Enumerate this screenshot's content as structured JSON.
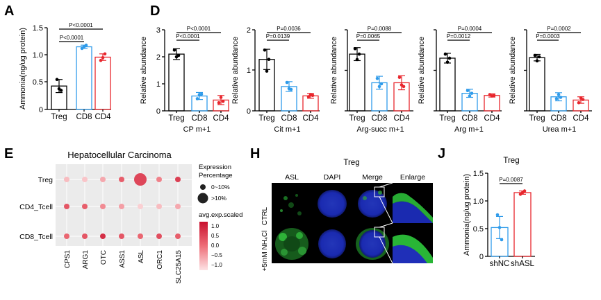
{
  "panel_labels": {
    "A": "A",
    "D": "D",
    "E": "E",
    "H": "H",
    "J": "J"
  },
  "chart_data": [
    {
      "id": "A",
      "type": "bar",
      "ylabel": "Ammonia(ng/ug protein)",
      "ylim": [
        0,
        1.5
      ],
      "yticks": [
        "0",
        "0.5",
        "1.0",
        "1.5"
      ],
      "categories": [
        "Treg",
        "CD8",
        "CD4"
      ],
      "values": [
        0.43,
        1.15,
        0.96
      ],
      "errors": [
        0.12,
        0.03,
        0.06
      ],
      "points": [
        [
          0.55,
          0.38,
          0.35
        ],
        [
          1.12,
          1.15,
          1.18
        ],
        [
          0.9,
          0.95,
          1.02
        ]
      ],
      "colors": [
        "#000000",
        "#2f9bea",
        "#e8262d"
      ],
      "annotations": [
        "P<0.0001",
        "P<0.0001"
      ]
    },
    {
      "id": "D1",
      "type": "bar",
      "ylabel": "Relative abundance",
      "xlabel": "CP m+1",
      "ylim": [
        0,
        3
      ],
      "yticks": [
        "0",
        "1",
        "2",
        "3"
      ],
      "categories": [
        "Treg",
        "CD8",
        "CD4"
      ],
      "values": [
        2.1,
        0.55,
        0.4
      ],
      "errors": [
        0.2,
        0.13,
        0.17
      ],
      "points": [
        [
          2.25,
          2.0,
          2.05
        ],
        [
          0.45,
          0.6,
          0.62
        ],
        [
          0.3,
          0.5,
          0.35
        ]
      ],
      "colors": [
        "#000000",
        "#2f9bea",
        "#e8262d"
      ],
      "annotations": [
        "P<0.0001",
        "P<0.0001"
      ]
    },
    {
      "id": "D2",
      "type": "bar",
      "ylabel": "Relative abundance",
      "xlabel": "Cit m+1",
      "ylim": [
        0,
        2
      ],
      "yticks": [
        "0",
        "1",
        "2"
      ],
      "categories": [
        "Treg",
        "CD8",
        "CD4"
      ],
      "values": [
        1.27,
        0.6,
        0.37
      ],
      "errors": [
        0.25,
        0.12,
        0.06
      ],
      "points": [
        [
          1.5,
          0.98,
          1.27
        ],
        [
          0.7,
          0.55,
          0.53
        ],
        [
          0.35,
          0.4,
          0.38
        ]
      ],
      "colors": [
        "#000000",
        "#2f9bea",
        "#e8262d"
      ],
      "annotations": [
        "P=0.0139",
        "P=0.0036"
      ]
    },
    {
      "id": "D3",
      "type": "bar",
      "ylabel": "Relative abundance",
      "xlabel": "Arg-succ m+1",
      "ylim": [
        0,
        1.5
      ],
      "yticks": [],
      "categories": [
        "Treg",
        "CD8",
        "CD4"
      ],
      "values": [
        1.05,
        0.52,
        0.52
      ],
      "errors": [
        0.12,
        0.12,
        0.13
      ],
      "points": [
        [
          1.15,
          0.95,
          1.05
        ],
        [
          0.6,
          0.45,
          0.5
        ],
        [
          0.62,
          0.48,
          0.45
        ]
      ],
      "colors": [
        "#000000",
        "#2f9bea",
        "#e8262d"
      ],
      "annotations": [
        "P=0.0065",
        "P=0.0088"
      ]
    },
    {
      "id": "D4",
      "type": "bar",
      "ylabel": "Relative abundance",
      "xlabel": "Arg m+1",
      "ylim": [
        0,
        3
      ],
      "yticks": [],
      "categories": [
        "Treg",
        "CD8",
        "CD4"
      ],
      "values": [
        1.95,
        0.65,
        0.57
      ],
      "errors": [
        0.18,
        0.15,
        0.06
      ],
      "points": [
        [
          2.1,
          1.8,
          1.95
        ],
        [
          0.75,
          0.55,
          0.65
        ],
        [
          0.6,
          0.55,
          0.57
        ]
      ],
      "colors": [
        "#000000",
        "#2f9bea",
        "#e8262d"
      ],
      "annotations": [
        "P=0.0012",
        "P=0.0004"
      ]
    },
    {
      "id": "D5",
      "type": "bar",
      "ylabel": "Relative abundance",
      "xlabel": "Urea m+1",
      "ylim": [
        0,
        3
      ],
      "yticks": [],
      "categories": [
        "Treg",
        "CD8",
        "CD4"
      ],
      "values": [
        1.97,
        0.52,
        0.4
      ],
      "errors": [
        0.12,
        0.15,
        0.12
      ],
      "points": [
        [
          2.05,
          1.85,
          2.0
        ],
        [
          0.45,
          0.6,
          0.5
        ],
        [
          0.3,
          0.48,
          0.42
        ]
      ],
      "colors": [
        "#000000",
        "#2f9bea",
        "#e8262d"
      ],
      "annotations": [
        "P=0.0003",
        "P=0.0002"
      ]
    },
    {
      "id": "E",
      "type": "heatmap",
      "title": "Hepatocellular Carcinoma",
      "rows": [
        "Treg",
        "CD4_Tcell",
        "CD8_Tcell"
      ],
      "cols": [
        "CPS1",
        "ARG1",
        "OTC",
        "ASS1",
        "ASL",
        "ORC1",
        "SLC25A15"
      ],
      "values": [
        [
          -0.8,
          -0.9,
          -0.6,
          0.2,
          0.5,
          -0.2,
          0.6
        ],
        [
          0.3,
          0.2,
          -0.3,
          -0.5,
          -1.0,
          -0.8,
          -0.6
        ],
        [
          0.1,
          0.3,
          0.8,
          0.3,
          0.1,
          0.4,
          0.2
        ]
      ],
      "large": [
        [
          false,
          false,
          false,
          false,
          true,
          false,
          false
        ],
        [
          false,
          false,
          false,
          false,
          false,
          false,
          false
        ],
        [
          false,
          false,
          false,
          false,
          false,
          false,
          false
        ]
      ],
      "legend": {
        "size_title": "Expression Percentage",
        "size_items": [
          "0~10%",
          ">10%"
        ],
        "color_title": "avg.exp.scaled",
        "color_ticks": [
          "1.0",
          "0.5",
          "0.0",
          "−0.5",
          "−1.0"
        ]
      }
    },
    {
      "id": "J",
      "type": "bar",
      "title": "Treg",
      "ylabel": "Ammonia(ng/ug protein)",
      "ylim": [
        0,
        1.5
      ],
      "yticks": [
        "0",
        "0.5",
        "1.0",
        "1.5"
      ],
      "categories": [
        "shNC",
        "shASL"
      ],
      "values": [
        0.52,
        1.15
      ],
      "errors": [
        0.2,
        0.03
      ],
      "points": [
        [
          0.75,
          0.52,
          0.3
        ],
        [
          1.12,
          1.15,
          1.18
        ]
      ],
      "colors": [
        "#2f9bea",
        "#e8262d"
      ],
      "annotations": [
        "P=0.0087"
      ]
    }
  ],
  "panel_H": {
    "title": "Treg",
    "columns": [
      "ASL",
      "DAPI",
      "Merge",
      "Enlarge"
    ],
    "rows": [
      "CTRL",
      "+5mM NH₄Cl"
    ]
  }
}
